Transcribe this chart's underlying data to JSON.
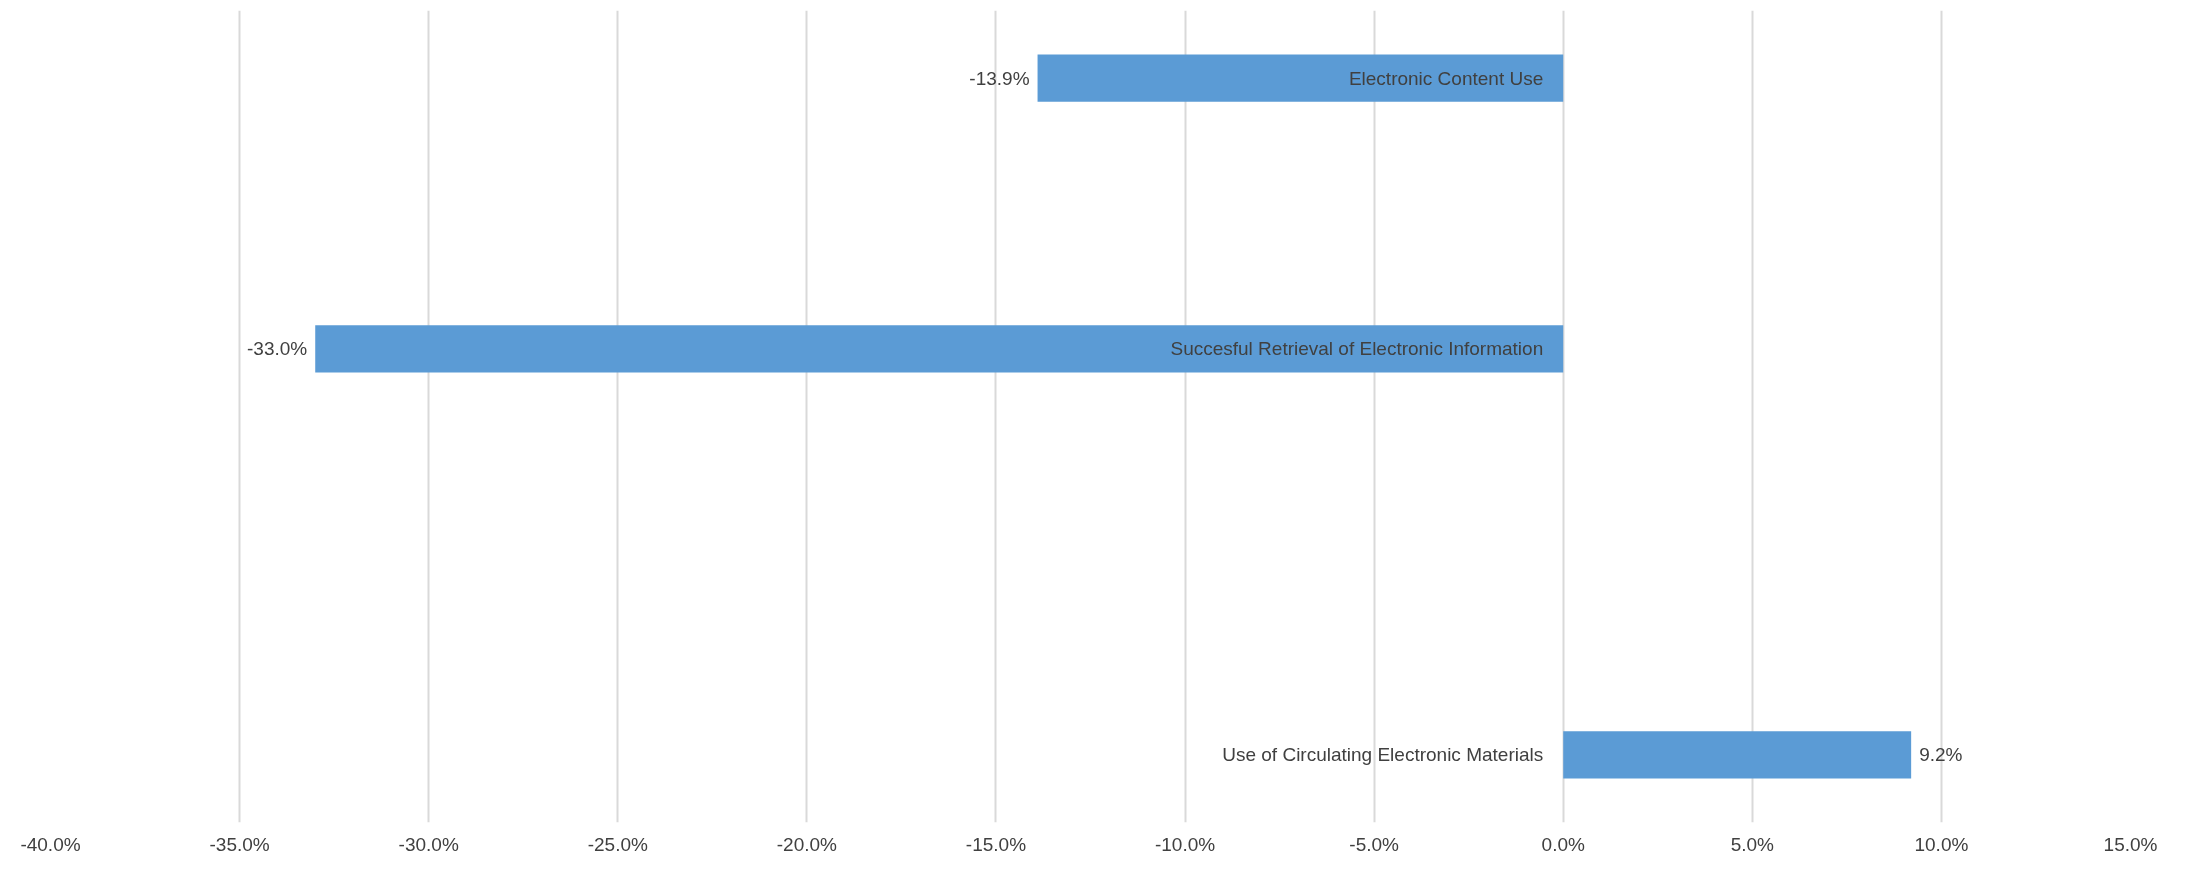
{
  "chart_data": {
    "type": "bar",
    "orientation": "horizontal",
    "categories": [
      "Electronic Content Use",
      null,
      "Succesful Retrieval of Electronic Information",
      null,
      null,
      "Use of Circulating Electronic Materials"
    ],
    "values": [
      -13.9,
      null,
      -33.0,
      null,
      null,
      9.2
    ],
    "value_labels": [
      "-13.9%",
      null,
      "-33.0%",
      null,
      null,
      "9.2%"
    ],
    "color": "#5b9bd5",
    "xlim": [
      -40,
      15
    ],
    "xticks": [
      {
        "value": -40,
        "label": "-40.0%"
      },
      {
        "value": -35,
        "label": "-35.0%"
      },
      {
        "value": -30,
        "label": "-30.0%"
      },
      {
        "value": -25,
        "label": "-25.0%"
      },
      {
        "value": -20,
        "label": "-20.0%"
      },
      {
        "value": -15,
        "label": "-15.0%"
      },
      {
        "value": -10,
        "label": "-10.0%"
      },
      {
        "value": -5,
        "label": "-5.0%"
      },
      {
        "value": 0,
        "label": "0.0%"
      },
      {
        "value": 5,
        "label": "5.0%"
      },
      {
        "value": 10,
        "label": "10.0%"
      },
      {
        "value": 15,
        "label": "15.0%"
      }
    ],
    "grid": "x"
  }
}
